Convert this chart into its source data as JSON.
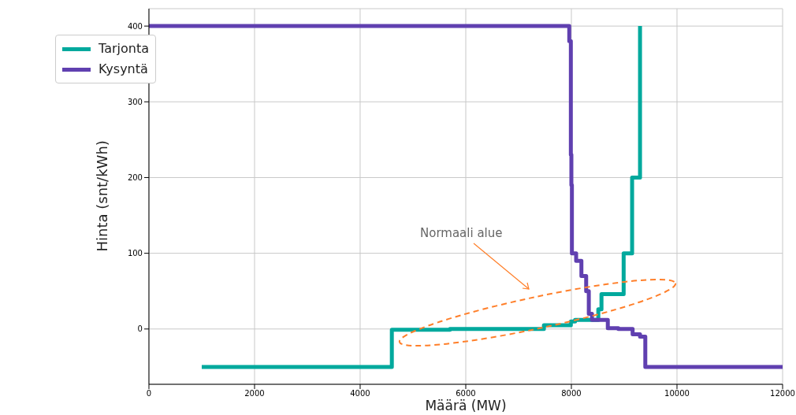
{
  "chart_data": {
    "type": "step",
    "xlabel": "Määrä (MW)",
    "ylabel": "Hinta (snt/kWh)",
    "xlim": [
      0,
      12000
    ],
    "xticks": [
      0,
      2000,
      4000,
      6000,
      8000,
      10000,
      12000
    ],
    "ylim": [
      -73,
      423
    ],
    "yticks": [
      0,
      100,
      200,
      300,
      400
    ],
    "grid": true,
    "legend": "top left",
    "line_style": "solid",
    "marker": "none",
    "annotations": [
      "Normaali alue"
    ],
    "series": [
      {
        "name": "Tarjonta",
        "color": "#00a99d",
        "x": [
          1000,
          4600,
          5700,
          7480,
          7990,
          8070,
          8510,
          8570,
          8990,
          9150,
          9300
        ],
        "values": [
          -50,
          -1,
          0,
          5,
          10,
          12,
          26,
          46,
          100,
          200,
          400
        ]
      },
      {
        "name": "Kysyntä",
        "color": "#6040b0",
        "x": [
          0,
          7960,
          7990,
          8000,
          8010,
          8090,
          8190,
          8280,
          8330,
          8390,
          8690,
          8890,
          9160,
          9300,
          9400,
          12000
        ],
        "values": [
          400,
          380,
          230,
          190,
          100,
          90,
          70,
          50,
          20,
          12,
          1,
          0,
          -7,
          -10,
          -50,
          -50
        ]
      }
    ]
  }
}
